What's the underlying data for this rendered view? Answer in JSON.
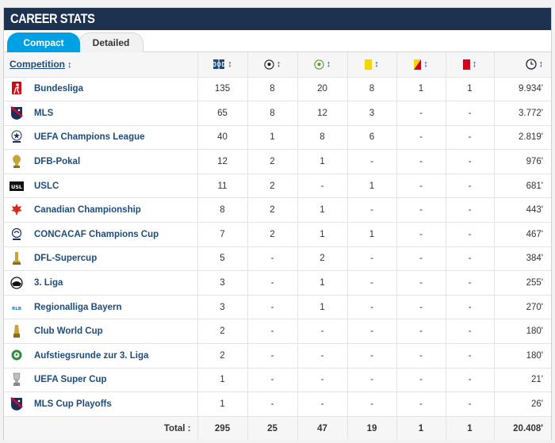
{
  "header": {
    "title": "CAREER STATS"
  },
  "tabs": [
    {
      "label": "Compact"
    },
    {
      "label": "Detailed"
    }
  ],
  "table": {
    "competition_header": "Competition",
    "sort_arrow": "↕",
    "columns": [
      {
        "icon": "appearances-icon"
      },
      {
        "icon": "goals-icon"
      },
      {
        "icon": "assists-icon"
      },
      {
        "icon": "yellow-card-icon"
      },
      {
        "icon": "yellow-red-card-icon"
      },
      {
        "icon": "red-card-icon"
      },
      {
        "icon": "minutes-clock-icon"
      }
    ],
    "rows": [
      {
        "name": "Bundesliga",
        "icon": "bundesliga-logo-icon",
        "apps": "135",
        "goals": "8",
        "assists": "20",
        "yellow": "8",
        "yellow_red": "1",
        "red": "1",
        "minutes": "9.934'"
      },
      {
        "name": "MLS",
        "icon": "mls-logo-icon",
        "apps": "65",
        "goals": "8",
        "assists": "12",
        "yellow": "3",
        "yellow_red": "-",
        "red": "-",
        "minutes": "3.772'"
      },
      {
        "name": "UEFA Champions League",
        "icon": "champions-league-logo-icon",
        "apps": "40",
        "goals": "1",
        "assists": "8",
        "yellow": "6",
        "yellow_red": "-",
        "red": "-",
        "minutes": "2.819'"
      },
      {
        "name": "DFB-Pokal",
        "icon": "dfb-pokal-logo-icon",
        "apps": "12",
        "goals": "2",
        "assists": "1",
        "yellow": "-",
        "yellow_red": "-",
        "red": "-",
        "minutes": "976'"
      },
      {
        "name": "USLC",
        "icon": "uslc-logo-icon",
        "apps": "11",
        "goals": "2",
        "assists": "-",
        "yellow": "1",
        "yellow_red": "-",
        "red": "-",
        "minutes": "681'"
      },
      {
        "name": "Canadian Championship",
        "icon": "canadian-championship-logo-icon",
        "apps": "8",
        "goals": "2",
        "assists": "1",
        "yellow": "-",
        "yellow_red": "-",
        "red": "-",
        "minutes": "443'"
      },
      {
        "name": "CONCACAF Champions Cup",
        "icon": "concacaf-logo-icon",
        "apps": "7",
        "goals": "2",
        "assists": "1",
        "yellow": "1",
        "yellow_red": "-",
        "red": "-",
        "minutes": "467'"
      },
      {
        "name": "DFL-Supercup",
        "icon": "dfl-supercup-logo-icon",
        "apps": "5",
        "goals": "-",
        "assists": "2",
        "yellow": "-",
        "yellow_red": "-",
        "red": "-",
        "minutes": "384'"
      },
      {
        "name": "3. Liga",
        "icon": "3-liga-logo-icon",
        "apps": "3",
        "goals": "-",
        "assists": "1",
        "yellow": "-",
        "yellow_red": "-",
        "red": "-",
        "minutes": "255'"
      },
      {
        "name": "Regionalliga Bayern",
        "icon": "regionalliga-bayern-logo-icon",
        "apps": "3",
        "goals": "-",
        "assists": "1",
        "yellow": "-",
        "yellow_red": "-",
        "red": "-",
        "minutes": "270'"
      },
      {
        "name": "Club World Cup",
        "icon": "club-world-cup-logo-icon",
        "apps": "2",
        "goals": "-",
        "assists": "-",
        "yellow": "-",
        "yellow_red": "-",
        "red": "-",
        "minutes": "180'"
      },
      {
        "name": "Aufstiegsrunde zur 3. Liga",
        "icon": "aufstiegsrunde-logo-icon",
        "apps": "2",
        "goals": "-",
        "assists": "-",
        "yellow": "-",
        "yellow_red": "-",
        "red": "-",
        "minutes": "180'"
      },
      {
        "name": "UEFA Super Cup",
        "icon": "uefa-super-cup-logo-icon",
        "apps": "1",
        "goals": "-",
        "assists": "-",
        "yellow": "-",
        "yellow_red": "-",
        "red": "-",
        "minutes": "21'"
      },
      {
        "name": "MLS Cup Playoffs",
        "icon": "mls-logo-icon",
        "apps": "1",
        "goals": "-",
        "assists": "-",
        "yellow": "-",
        "yellow_red": "-",
        "red": "-",
        "minutes": "26'"
      }
    ],
    "totals": {
      "label": "Total :",
      "apps": "295",
      "goals": "25",
      "assists": "47",
      "yellow": "19",
      "yellow_red": "1",
      "red": "1",
      "minutes": "20.408'"
    }
  },
  "colors": {
    "header_bg": "#1d3150",
    "tab_active": "#00a1e4",
    "link": "#1d4c7c",
    "yellow_card": "#f5d800",
    "red_card": "#d0021b"
  }
}
